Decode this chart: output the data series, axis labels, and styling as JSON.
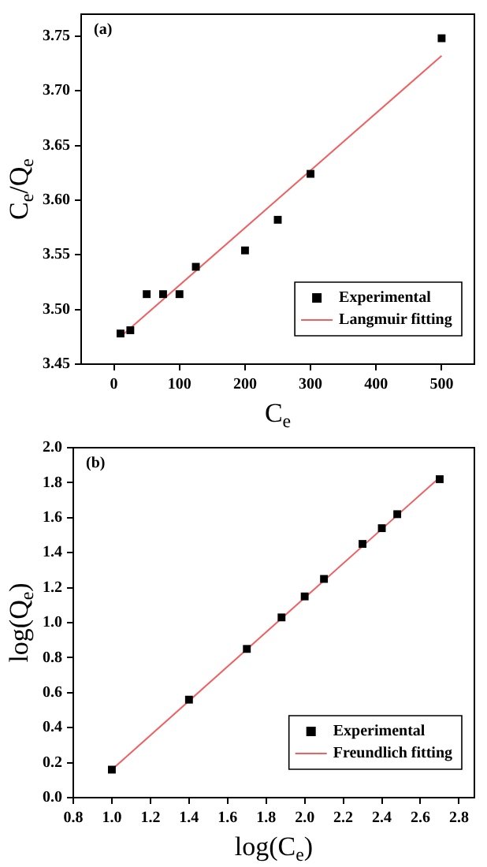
{
  "chart_data": [
    {
      "type": "scatter",
      "xlabel": "C$_{e}$",
      "ylabel": "C$_{e}$/Q$_{e}$",
      "annotations": [
        "(a)"
      ],
      "legend": "bottom right",
      "grid": false,
      "xlim": [
        -50,
        550
      ],
      "xticks": [
        0,
        100,
        200,
        300,
        400,
        500
      ],
      "ylim": [
        3.45,
        3.77
      ],
      "yticks": [
        3.45,
        {
          "value": 3.5,
          "label": "3.50"
        },
        3.55,
        {
          "value": 3.6,
          "label": "3.60"
        },
        3.65,
        {
          "value": 3.7,
          "label": "3.70"
        },
        3.75
      ],
      "series": [
        {
          "name": "Experimental",
          "marker": "square",
          "color": "#000000",
          "x": [
            10,
            25,
            50,
            75,
            100,
            125,
            200,
            250,
            300,
            500
          ],
          "values": [
            3.478,
            3.481,
            3.514,
            3.514,
            3.514,
            3.539,
            3.554,
            3.582,
            3.624,
            3.748
          ]
        },
        {
          "name": "Langmuir fitting",
          "type": "line",
          "marker": "none",
          "color": "#f06060",
          "x": [
            10,
            500
          ],
          "values": [
            3.475,
            3.732
          ]
        }
      ]
    },
    {
      "type": "scatter",
      "xlabel": "log(C$_{e}$)",
      "ylabel": "log(Q$_{e}$)",
      "annotations": [
        "(b)"
      ],
      "legend": "bottom right",
      "grid": false,
      "xlim": [
        0.8,
        2.88
      ],
      "xticks": [
        0.8,
        {
          "value": 1,
          "label": "1.0"
        },
        1.2,
        1.4,
        1.6,
        1.8,
        {
          "value": 2,
          "label": "2.0"
        },
        2.2,
        2.4,
        2.6,
        2.8
      ],
      "ylim": [
        0,
        2.0
      ],
      "yticks": [
        {
          "value": 0,
          "label": "0.0"
        },
        0.2,
        0.4,
        0.6,
        0.8,
        {
          "value": 1,
          "label": "1.0"
        },
        1.2,
        1.4,
        1.6,
        1.8,
        {
          "value": 2,
          "label": "2.0"
        }
      ],
      "series": [
        {
          "name": "Experimental",
          "marker": "square",
          "color": "#000000",
          "x": [
            1.0,
            1.4,
            1.7,
            1.88,
            2.0,
            2.1,
            2.3,
            2.4,
            2.48,
            2.7
          ],
          "values": [
            0.16,
            0.56,
            0.85,
            1.03,
            1.15,
            1.25,
            1.45,
            1.54,
            1.62,
            1.82
          ]
        },
        {
          "name": "Freundlich fitting",
          "type": "line",
          "marker": "none",
          "color": "#f06060",
          "x": [
            1.0,
            2.7
          ],
          "values": [
            0.16,
            1.83
          ]
        }
      ]
    }
  ]
}
